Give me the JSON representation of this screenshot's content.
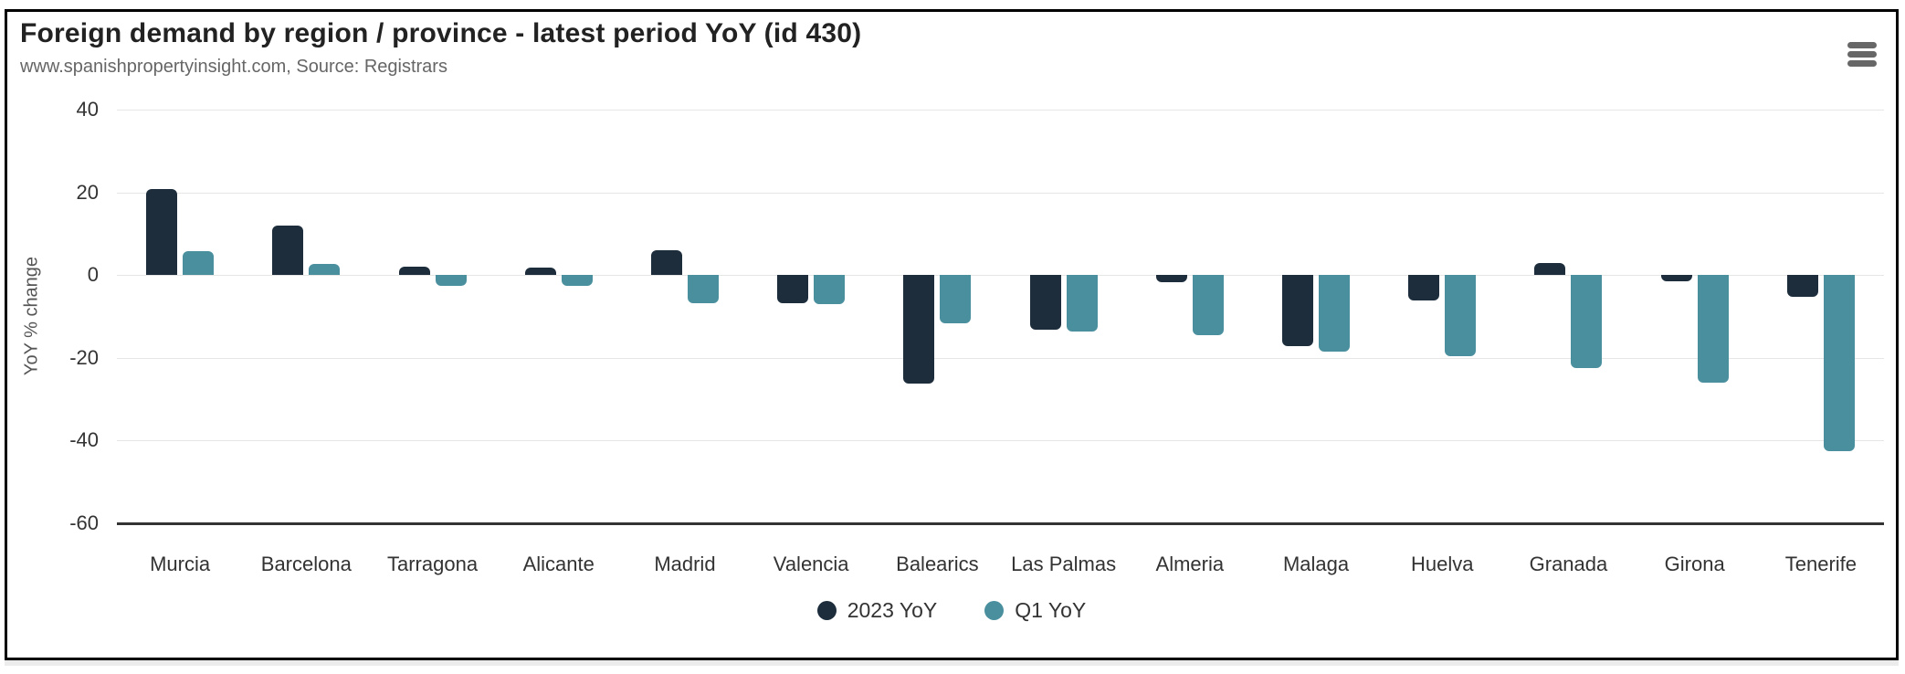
{
  "chart": {
    "title": "Foreign demand by region / province - latest period YoY (id 430)",
    "subtitle": "www.spanishpropertyinsight.com, Source: Registrars",
    "menu_icon": "hamburger-menu",
    "colors": {
      "series_2023": "#1d2d3c",
      "series_q1": "#4a8f9e",
      "gridline": "#e6e6e6",
      "axis_line": "#333333",
      "title_text": "#222222",
      "subtitle_text": "#666666",
      "label_text": "#333333",
      "axis_title_text": "#555555",
      "menu_icon": "#676767"
    }
  },
  "chart_data": {
    "type": "bar",
    "title": "Foreign demand by region / province - latest period YoY (id 430)",
    "subtitle": "www.spanishpropertyinsight.com, Source: Registrars",
    "xlabel": "",
    "ylabel": "YoY % change",
    "ylim": [
      -60,
      40
    ],
    "ytick_step": 20,
    "yticks": [
      40,
      20,
      0,
      -20,
      -40,
      -60
    ],
    "grid": true,
    "legend_position": "bottom-center",
    "categories": [
      "Murcia",
      "Barcelona",
      "Tarragona",
      "Alicante",
      "Madrid",
      "Valencia",
      "Balearics",
      "Las Palmas",
      "Almeria",
      "Malaga",
      "Huelva",
      "Granada",
      "Girona",
      "Tenerife"
    ],
    "series": [
      {
        "name": "2023 YoY",
        "color": "#1d2d3c",
        "values": [
          20.7,
          11.9,
          2.0,
          1.9,
          6.0,
          -6.9,
          -26.3,
          -13.1,
          -1.7,
          -17.2,
          -6.2,
          3.0,
          -1.5,
          -5.3
        ]
      },
      {
        "name": "Q1 YoY",
        "color": "#4a8f9e",
        "values": [
          5.8,
          2.8,
          -2.6,
          -2.6,
          -6.9,
          -7.0,
          -11.6,
          -13.6,
          -14.5,
          -18.4,
          -19.6,
          -22.4,
          -26.1,
          -42.6
        ]
      }
    ]
  }
}
